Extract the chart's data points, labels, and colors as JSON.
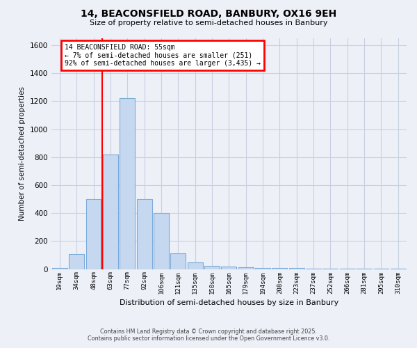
{
  "title1": "14, BEACONSFIELD ROAD, BANBURY, OX16 9EH",
  "title2": "Size of property relative to semi-detached houses in Banbury",
  "xlabel": "Distribution of semi-detached houses by size in Banbury",
  "ylabel": "Number of semi-detached properties",
  "categories": [
    "19sqm",
    "34sqm",
    "48sqm",
    "63sqm",
    "77sqm",
    "92sqm",
    "106sqm",
    "121sqm",
    "135sqm",
    "150sqm",
    "165sqm",
    "179sqm",
    "194sqm",
    "208sqm",
    "223sqm",
    "237sqm",
    "252sqm",
    "266sqm",
    "281sqm",
    "295sqm",
    "310sqm"
  ],
  "values": [
    10,
    110,
    500,
    820,
    1220,
    500,
    400,
    115,
    50,
    25,
    20,
    15,
    10,
    8,
    8,
    3,
    3,
    2,
    1,
    1,
    1
  ],
  "bar_color": "#c5d8f0",
  "bar_edgecolor": "#7aabda",
  "red_line_x": 2.5,
  "ylim": [
    0,
    1650
  ],
  "yticks": [
    0,
    200,
    400,
    600,
    800,
    1000,
    1200,
    1400,
    1600
  ],
  "annotation_title": "14 BEACONSFIELD ROAD: 55sqm",
  "annotation_line1": "← 7% of semi-detached houses are smaller (251)",
  "annotation_line2": "92% of semi-detached houses are larger (3,435) →",
  "footnote1": "Contains HM Land Registry data © Crown copyright and database right 2025.",
  "footnote2": "Contains public sector information licensed under the Open Government Licence v3.0.",
  "background_color": "#eef0f8",
  "plot_bg_color": "#eef0f8",
  "grid_color": "#c8cfe0",
  "ann_box_color": "white",
  "ann_edge_color": "red"
}
